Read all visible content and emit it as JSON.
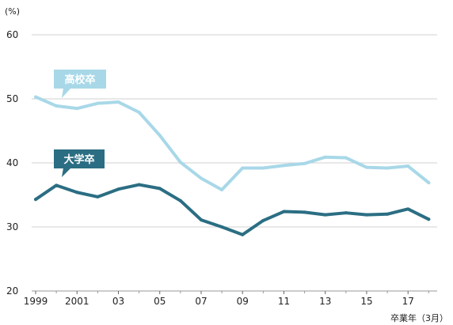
{
  "chart_data": {
    "type": "line",
    "title": "",
    "unit_label": "(%)",
    "xlabel": "卒業年（3月）",
    "ylabel": "",
    "ylim": [
      20,
      60
    ],
    "yticks": [
      20,
      30,
      40,
      50,
      60
    ],
    "x": [
      1999,
      2000,
      2001,
      2002,
      2003,
      2004,
      2005,
      2006,
      2007,
      2008,
      2009,
      2010,
      2011,
      2012,
      2013,
      2014,
      2015,
      2016,
      2017,
      2018
    ],
    "xtick_labels": [
      "1999",
      "2001",
      "03",
      "05",
      "07",
      "09",
      "11",
      "13",
      "15",
      "17"
    ],
    "grid": true,
    "series": [
      {
        "name": "高校卒",
        "color": "#a8d8e8",
        "values": [
          50.3,
          48.9,
          48.5,
          49.3,
          49.5,
          47.9,
          44.3,
          40.1,
          37.6,
          35.8,
          39.2,
          39.2,
          39.6,
          39.9,
          40.9,
          40.8,
          39.3,
          39.2,
          39.5,
          36.9
        ]
      },
      {
        "name": "大学卒",
        "color": "#2b6e83",
        "values": [
          34.3,
          36.5,
          35.4,
          34.7,
          35.9,
          36.6,
          36.0,
          34.1,
          31.1,
          30.0,
          28.8,
          31.0,
          32.4,
          32.3,
          31.9,
          32.2,
          31.9,
          32.0,
          32.8,
          31.2
        ]
      }
    ]
  }
}
